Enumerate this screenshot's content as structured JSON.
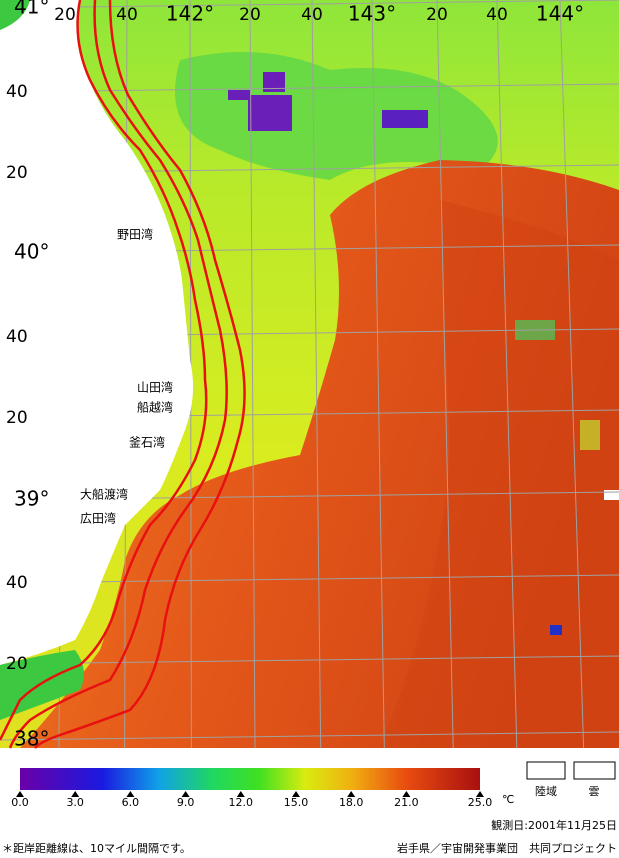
{
  "map": {
    "longitude_labels": [
      "20",
      "40",
      "142°",
      "20",
      "40",
      "143°",
      "20",
      "40",
      "144°"
    ],
    "latitude_labels": [
      "41°",
      "40",
      "20",
      "40°",
      "40",
      "20",
      "39°",
      "40",
      "20",
      "38°"
    ],
    "places": [
      "野田湾",
      "山田湾",
      "船越湾",
      "釜石湾",
      "大船渡湾",
      "広田湾"
    ],
    "colorbar": {
      "lim": [
        0,
        25
      ],
      "ticks": [
        {
          "value": 0,
          "label": "0.0"
        },
        {
          "value": 3,
          "label": "3.0"
        },
        {
          "value": 6,
          "label": "6.0"
        },
        {
          "value": 9,
          "label": "9.0"
        },
        {
          "value": 12,
          "label": "12.0"
        },
        {
          "value": 15,
          "label": "15.0"
        },
        {
          "value": 18,
          "label": "18.0"
        },
        {
          "value": 21,
          "label": "21.0"
        },
        {
          "value": 25,
          "label": "25.0"
        }
      ],
      "unit": "℃"
    },
    "legend": [
      "陸域",
      "雲"
    ],
    "date": "観測日:2001年11月25日",
    "note": "＊距岸距離線は、10マイル間隔です。",
    "credit": "岩手県／宇宙開発事業団　共同プロジェクト"
  }
}
